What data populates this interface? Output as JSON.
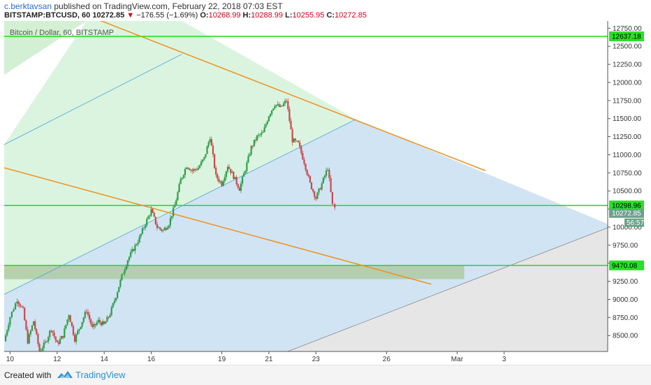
{
  "header": {
    "author": "c.berktavsan",
    "published_text": " published on TradingView.com, February 22, 2018 07:03 EST",
    "symbol_interval": "BITSTAMP:BTCUSD, 60",
    "last_price": "10272.85",
    "change_arrow": "▼",
    "change": "−176.55 (−1.69%)",
    "o_label": "O:",
    "o_value": "10268.99",
    "h_label": "H:",
    "h_value": "10288.99",
    "l_label": "L:",
    "l_value": "10255.95",
    "c_label": "C:",
    "c_value": "10272.85"
  },
  "chart_data": {
    "type": "candlestick",
    "legend": "Bitcoin / Dollar, 60, BITSTAMP",
    "x_start_day": 9.75,
    "x_end_day": 35.4,
    "ylim": [
      8280,
      12850
    ],
    "y_ticks": [
      12750,
      12500,
      12250,
      12000,
      11750,
      11500,
      11250,
      11000,
      10750,
      10500,
      10250,
      10000,
      9750,
      9500,
      9250,
      9000,
      8750,
      8500
    ],
    "y_tick_labels": [
      "12750.00",
      "12500.00",
      "12250.00",
      "12000.00",
      "11750.00",
      "11500.00",
      "11250.00",
      "11000.00",
      "10750.00",
      "10500.00",
      "10250.00",
      "10000.00",
      "9750.00",
      "9500.00",
      "9250.00",
      "9000.00",
      "8750.00",
      "8500.00"
    ],
    "x_ticks": [
      {
        "day": 10,
        "label": "10"
      },
      {
        "day": 12,
        "label": "12"
      },
      {
        "day": 14,
        "label": "14"
      },
      {
        "day": 16,
        "label": "16"
      },
      {
        "day": 19,
        "label": "19"
      },
      {
        "day": 21,
        "label": "21"
      },
      {
        "day": 23,
        "label": "23"
      },
      {
        "day": 26,
        "label": "26"
      },
      {
        "day": 29,
        "label": "Mar"
      },
      {
        "day": 31,
        "label": "3"
      }
    ],
    "horizontal_levels": [
      {
        "value": 12637.18,
        "label": "12637.18"
      },
      {
        "value": 10298.96,
        "label": "10298.96"
      },
      {
        "value": 9470.08,
        "label": "9470.08"
      }
    ],
    "last_price_label": "10272.85",
    "countdown_label": "56:57",
    "trend_lines": [
      {
        "from": [
          13.25,
          12930
        ],
        "to": [
          30.2,
          10780
        ]
      },
      {
        "from": [
          9.75,
          10820
        ],
        "to": [
          27.9,
          9210
        ]
      }
    ],
    "channel_lines": [
      {
        "from": [
          9.75,
          11140
        ],
        "to": [
          17.3,
          12390
        ]
      },
      {
        "from": [
          9.75,
          9070
        ],
        "to": [
          24.7,
          11490
        ]
      },
      {
        "from": [
          21.8,
          8280
        ],
        "to": [
          35.4,
          9990
        ]
      }
    ],
    "zone": {
      "x_from_day": 9.75,
      "x_to_day": 29.3,
      "y_from": 9280,
      "y_to": 9470
    },
    "close_path": [
      [
        9.75,
        8420
      ],
      [
        10.0,
        8760
      ],
      [
        10.3,
        9000
      ],
      [
        10.55,
        8850
      ],
      [
        10.75,
        8420
      ],
      [
        11.0,
        8700
      ],
      [
        11.25,
        8280
      ],
      [
        11.5,
        8400
      ],
      [
        11.75,
        8600
      ],
      [
        12.0,
        8380
      ],
      [
        12.25,
        8500
      ],
      [
        12.5,
        8800
      ],
      [
        12.75,
        8450
      ],
      [
        13.0,
        8650
      ],
      [
        13.25,
        8850
      ],
      [
        13.5,
        8600
      ],
      [
        13.75,
        8700
      ],
      [
        14.0,
        8650
      ],
      [
        14.25,
        8800
      ],
      [
        14.5,
        9050
      ],
      [
        14.75,
        9320
      ],
      [
        15.0,
        9550
      ],
      [
        15.25,
        9700
      ],
      [
        15.5,
        9850
      ],
      [
        15.75,
        10050
      ],
      [
        16.0,
        10230
      ],
      [
        16.25,
        10000
      ],
      [
        16.5,
        9950
      ],
      [
        16.75,
        10050
      ],
      [
        17.0,
        10300
      ],
      [
        17.25,
        10650
      ],
      [
        17.5,
        10850
      ],
      [
        17.75,
        10780
      ],
      [
        18.0,
        10820
      ],
      [
        18.25,
        10950
      ],
      [
        18.5,
        11250
      ],
      [
        18.75,
        10700
      ],
      [
        19.0,
        10600
      ],
      [
        19.25,
        10850
      ],
      [
        19.5,
        10700
      ],
      [
        19.75,
        10530
      ],
      [
        20.0,
        10800
      ],
      [
        20.25,
        11100
      ],
      [
        20.5,
        11250
      ],
      [
        20.75,
        11300
      ],
      [
        21.0,
        11550
      ],
      [
        21.25,
        11700
      ],
      [
        21.5,
        11650
      ],
      [
        21.75,
        11750
      ],
      [
        22.0,
        11200
      ],
      [
        22.25,
        11150
      ],
      [
        22.5,
        10900
      ],
      [
        22.75,
        10600
      ],
      [
        23.0,
        10400
      ],
      [
        23.25,
        10600
      ],
      [
        23.5,
        10820
      ],
      [
        23.7,
        10300
      ],
      [
        23.8,
        10272.85
      ]
    ]
  },
  "footer": {
    "created_with": "Created with",
    "brand": "TradingView"
  }
}
